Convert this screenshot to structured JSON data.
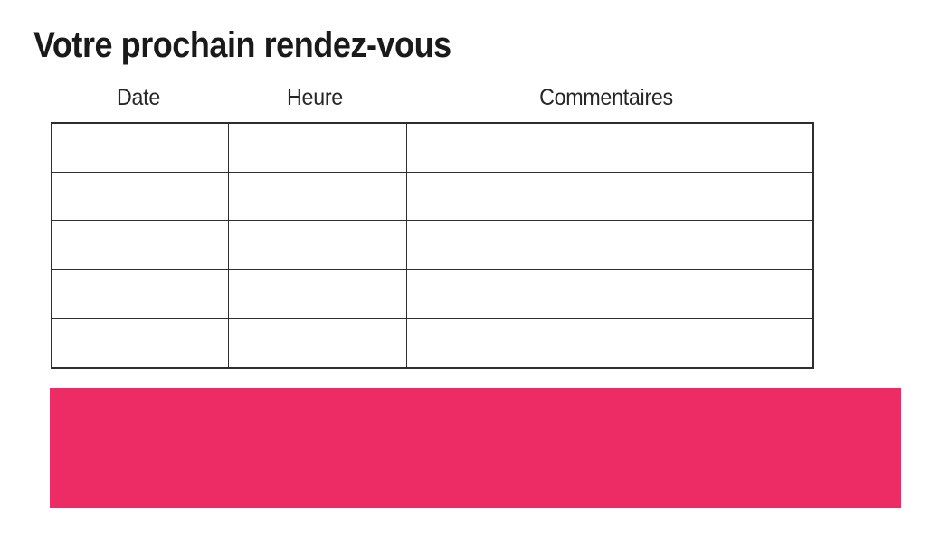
{
  "page": {
    "title": "Votre prochain rendez-vous"
  },
  "table": {
    "columns": [
      {
        "label": "Date"
      },
      {
        "label": "Heure"
      },
      {
        "label": "Commentaires"
      }
    ],
    "rows": [
      {
        "date": "",
        "heure": "",
        "commentaires": ""
      },
      {
        "date": "",
        "heure": "",
        "commentaires": ""
      },
      {
        "date": "",
        "heure": "",
        "commentaires": ""
      },
      {
        "date": "",
        "heure": "",
        "commentaires": ""
      },
      {
        "date": "",
        "heure": "",
        "commentaires": ""
      }
    ]
  },
  "colors": {
    "accent_pink": "#ED2B64",
    "table_border": "#2e2e2e",
    "title_text": "#1a1a1a",
    "header_text": "#262626",
    "background": "#ffffff"
  }
}
